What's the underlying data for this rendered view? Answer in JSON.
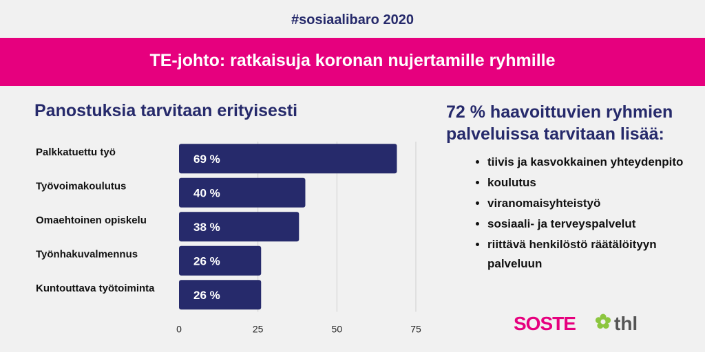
{
  "header": {
    "hashtag": "#sosiaalibaro 2020",
    "title": "TE-johto: ratkaisuja koronan nujertamille ryhmille"
  },
  "colors": {
    "accent": "#e6007e",
    "navy": "#262a6b",
    "background": "#f1f1f1"
  },
  "chart_data": {
    "type": "bar",
    "orientation": "horizontal",
    "title": "Panostuksia tarvitaan erityisesti",
    "categories": [
      "Palkkatuettu työ",
      "Työvoimakoulutus",
      "Omaehtoinen opiskelu",
      "Työnhakuvalmennus",
      "Kuntouttava työtoiminta"
    ],
    "values": [
      69,
      40,
      38,
      26,
      26
    ],
    "value_labels": [
      "69 %",
      "40 %",
      "38 %",
      "26 %",
      "26 %"
    ],
    "xlim": [
      0,
      75
    ],
    "xticks": [
      0,
      25,
      50,
      75
    ],
    "grid": true,
    "bar_color": "#262a6b"
  },
  "right_panel": {
    "title": "72 % haavoittuvien ryhmien palveluissa tarvitaan lisää:",
    "items": [
      "tiivis ja kasvokkainen yhteydenpito",
      "koulutus",
      "viranomaisyhteistyö",
      "sosiaali- ja terveyspalvelut",
      "riittävä henkilöstö räätälöityyn palveluun"
    ]
  },
  "logos": {
    "soste": "SOSTE",
    "thl": "thl"
  }
}
